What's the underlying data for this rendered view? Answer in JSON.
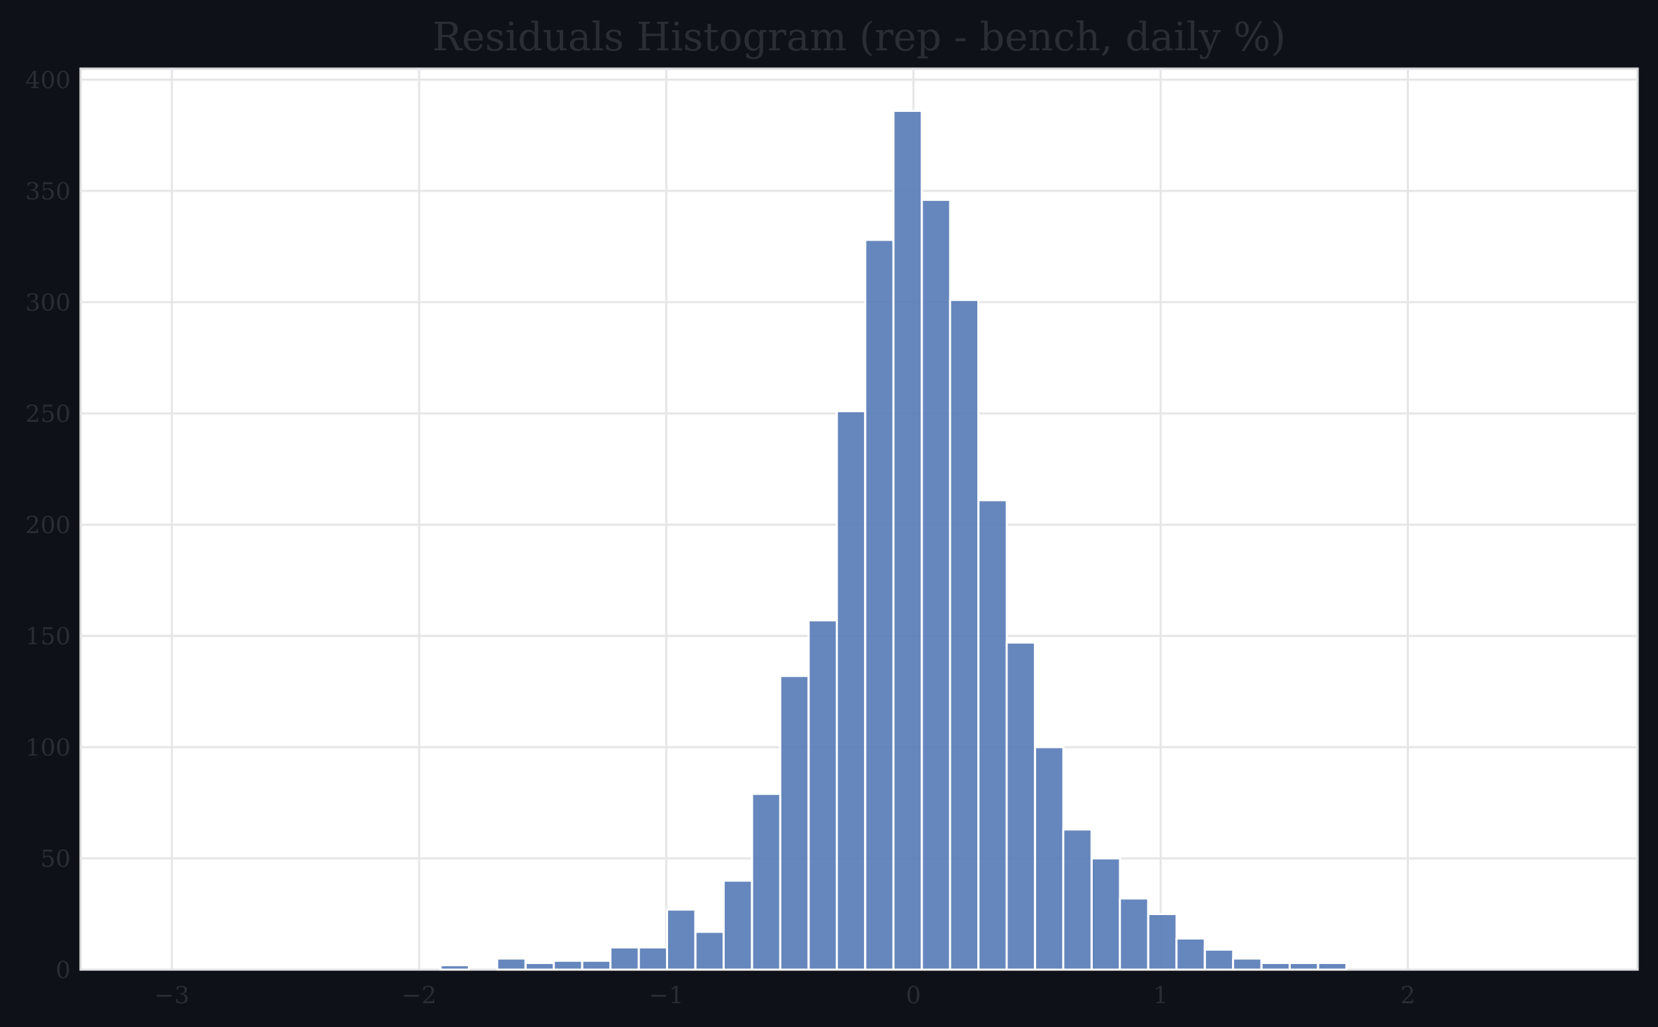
{
  "chart_data": {
    "type": "bar",
    "title": "Residuals Histogram (rep - bench, daily %)",
    "xlabel": "",
    "ylabel": "",
    "xlim": [
      -3.37,
      2.93
    ],
    "ylim": [
      0,
      405
    ],
    "x_ticks": [
      -3,
      -2,
      -1,
      0,
      1,
      2
    ],
    "x_tick_labels": [
      "−3",
      "−2",
      "−1",
      "0",
      "1",
      "2"
    ],
    "y_ticks": [
      0,
      50,
      100,
      150,
      200,
      250,
      300,
      350,
      400
    ],
    "y_tick_labels": [
      "0",
      "50",
      "100",
      "150",
      "200",
      "250",
      "300",
      "350",
      "400"
    ],
    "grid": true,
    "bin_width": 0.1145,
    "bins": [
      {
        "x0": -3.0,
        "value": 0
      },
      {
        "x0": -1.913,
        "value": 2
      },
      {
        "x0": -1.684,
        "value": 5
      },
      {
        "x0": -1.569,
        "value": 3
      },
      {
        "x0": -1.455,
        "value": 4
      },
      {
        "x0": -1.34,
        "value": 4
      },
      {
        "x0": -1.226,
        "value": 10
      },
      {
        "x0": -1.111,
        "value": 10
      },
      {
        "x0": -0.997,
        "value": 27
      },
      {
        "x0": -0.882,
        "value": 17
      },
      {
        "x0": -0.768,
        "value": 40
      },
      {
        "x0": -0.653,
        "value": 79
      },
      {
        "x0": -0.539,
        "value": 132
      },
      {
        "x0": -0.424,
        "value": 157
      },
      {
        "x0": -0.31,
        "value": 251
      },
      {
        "x0": -0.195,
        "value": 328
      },
      {
        "x0": -0.081,
        "value": 386
      },
      {
        "x0": 0.034,
        "value": 346
      },
      {
        "x0": 0.148,
        "value": 301
      },
      {
        "x0": 0.263,
        "value": 211
      },
      {
        "x0": 0.377,
        "value": 147
      },
      {
        "x0": 0.492,
        "value": 100
      },
      {
        "x0": 0.606,
        "value": 63
      },
      {
        "x0": 0.721,
        "value": 50
      },
      {
        "x0": 0.835,
        "value": 32
      },
      {
        "x0": 0.95,
        "value": 25
      },
      {
        "x0": 1.064,
        "value": 14
      },
      {
        "x0": 1.179,
        "value": 9
      },
      {
        "x0": 1.293,
        "value": 5
      },
      {
        "x0": 1.408,
        "value": 3
      },
      {
        "x0": 1.522,
        "value": 3
      },
      {
        "x0": 1.637,
        "value": 3
      },
      {
        "x0": 1.751,
        "value": 0
      }
    ],
    "colors": {
      "bar": "#5a7db8",
      "background": "#0e1118",
      "plot_area": "#ffffff",
      "grid": "#e6e6e6",
      "text": "#2a2d33"
    }
  }
}
